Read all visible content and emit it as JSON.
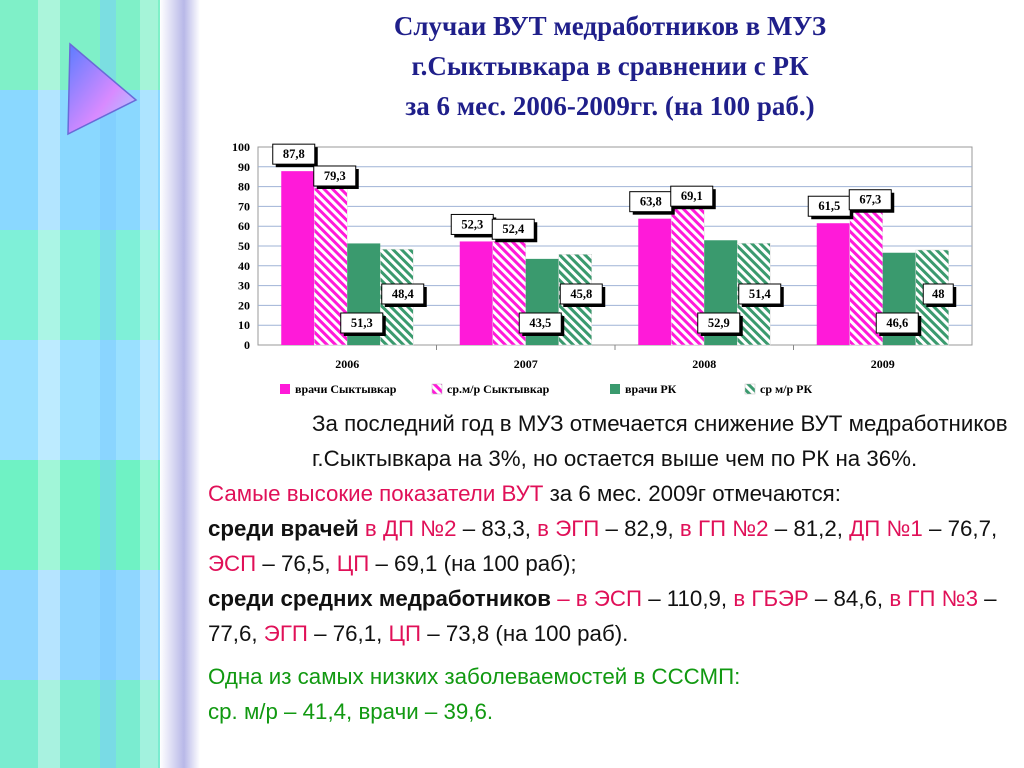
{
  "title": {
    "line1": "Случаи ВУТ медработников в МУЗ",
    "line2": "г.Сыктывкара в сравнении с РК",
    "line3": "за 6 мес. 2006-2009гг. (на 100 раб.)"
  },
  "chart_data": {
    "type": "bar",
    "categories": [
      "2006",
      "2007",
      "2008",
      "2009"
    ],
    "series": [
      {
        "name": "врачи Сыктывкар",
        "values": [
          87.8,
          52.3,
          63.8,
          61.5
        ],
        "labels": [
          "87,8",
          "52,3",
          "63,8",
          "61,5"
        ],
        "color": "#ff1ad9",
        "pattern": "solid"
      },
      {
        "name": "ср.м/р Сыктывкар",
        "values": [
          79.3,
          52.4,
          69.1,
          67.3
        ],
        "labels": [
          "79,3",
          "52,4",
          "69,1",
          "67,3"
        ],
        "color": "#ff1ad9",
        "pattern": "hatch"
      },
      {
        "name": "врачи РК",
        "values": [
          51.3,
          43.5,
          52.9,
          46.6
        ],
        "labels": [
          "51,3",
          "43,5",
          "52,9",
          "46,6"
        ],
        "color": "#3a9a6e",
        "pattern": "solid"
      },
      {
        "name": "ср м/р РК",
        "values": [
          48.4,
          45.8,
          51.4,
          48
        ],
        "labels": [
          "48,4",
          "45,8",
          "51,4",
          "48"
        ],
        "color": "#3a9a6e",
        "pattern": "hatch"
      }
    ],
    "yticks": [
      "100",
      "90",
      "80",
      "70",
      "60",
      "50",
      "40",
      "30",
      "20",
      "10",
      "0"
    ],
    "ylim": [
      0,
      100
    ],
    "grid": true,
    "legend_position": "bottom"
  },
  "text": {
    "p1": "За последний год в МУЗ отмечается снижение ВУТ медработников г.Сыктывкара на 3%, но остается выше чем по РК на 36%.",
    "p2_red": "Самые высокие показатели ВУТ",
    "p2_rest": " за 6 мес. 2009г отмечаются:",
    "p3_bold": "среди врачей",
    "p3_r1": " в ДП №2",
    "p3_t1": " – 83,3, ",
    "p3_r2": "в ЭГП",
    "p3_t2": " – 82,9, ",
    "p3_r3": "в ГП №2",
    "p3_t3": " – 81,2, ",
    "p3_r4": "ДП №1",
    "p3_t4": " – 76,7, ",
    "p3_r5": "ЭСП",
    "p3_t5": " – 76,5, ",
    "p3_r6": "ЦП",
    "p3_t6": " – 69,1 (на 100 раб);",
    "p4_bold": "среди средних медработников",
    "p4_r1": " – в ЭСП",
    "p4_t1": " – 110,9, ",
    "p4_r2": "в ГБЭР",
    "p4_t2": " – 84,6, ",
    "p4_r3": "в ГП №3",
    "p4_t3": " – 77,6, ",
    "p4_r4": "ЭГП",
    "p4_t4": " – 76,1, ",
    "p4_r5": "ЦП",
    "p4_t5": " – 73,8 (на 100 раб).",
    "p5_line1": "Одна из самых низких заболеваемостей в СССМП:",
    "p5_line2": "ср. м/р – 41,4, врачи – 39,6."
  }
}
